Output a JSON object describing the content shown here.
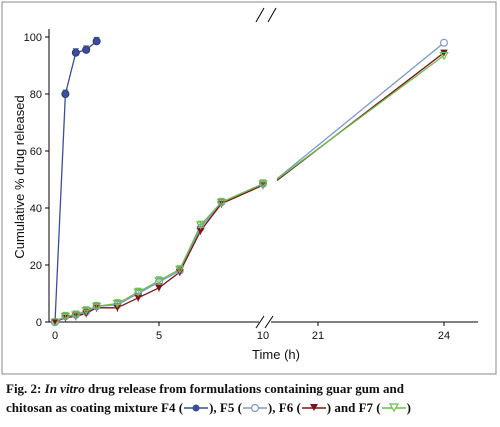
{
  "chart_data": {
    "type": "line",
    "ylabel": "Cumulative % drug released",
    "xlabel": "Time (h)",
    "ylim": [
      0,
      100
    ],
    "y_ticks": [
      "0",
      "20",
      "40",
      "60",
      "80",
      "100"
    ],
    "x_ticks": [
      "0",
      "5",
      "10",
      "21",
      "24"
    ],
    "x_axis_break": [
      10,
      21
    ],
    "series": [
      {
        "name": "F4",
        "color": "#3a4f9a",
        "marker": "circle-filled",
        "x": [
          0,
          0.5,
          1,
          1.5,
          2
        ],
        "y": [
          0,
          80,
          94.5,
          95.5,
          98.5
        ]
      },
      {
        "name": "F5",
        "color": "#8098cc",
        "marker": "circle-open",
        "x": [
          0,
          0.5,
          1,
          1.5,
          2,
          3,
          4,
          5,
          6,
          7,
          8,
          10,
          24
        ],
        "y": [
          0,
          2,
          2.5,
          3.5,
          5.5,
          6,
          10,
          14,
          18,
          33,
          42,
          48.5,
          98
        ]
      },
      {
        "name": "F6",
        "color": "#7a1515",
        "marker": "triangle-down-filled",
        "x": [
          0,
          0.5,
          1,
          1.5,
          2,
          3,
          4,
          5,
          6,
          7,
          8,
          10,
          24
        ],
        "y": [
          0,
          1.5,
          2,
          3,
          5,
          5,
          8.5,
          12,
          17.5,
          32,
          41.5,
          48,
          94.5
        ]
      },
      {
        "name": "F7",
        "color": "#6abf4b",
        "marker": "triangle-down-open",
        "x": [
          0,
          0.5,
          1,
          1.5,
          2,
          3,
          4,
          5,
          6,
          7,
          8,
          10,
          24
        ],
        "y": [
          0,
          2,
          2.5,
          4,
          5.5,
          6.5,
          10.5,
          14.5,
          18.5,
          34,
          42,
          48.5,
          93.5
        ]
      }
    ]
  },
  "caption": {
    "label": "Fig. 2:",
    "italic": "In vitro",
    "text1": " drug release from formulations containing guar gum and",
    "text2": "chitosan as coating mixture F4 (",
    "f5": "), F5 (",
    "f6": "), F6 (",
    "f7": ") and F7 (",
    "end": ")"
  }
}
